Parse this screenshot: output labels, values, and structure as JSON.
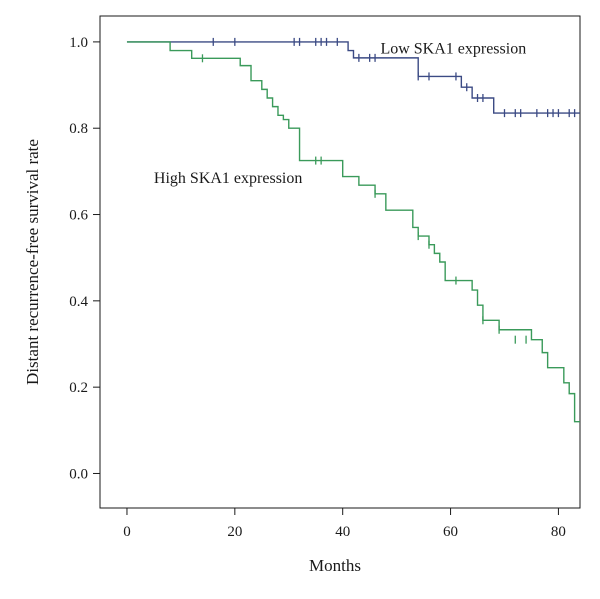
{
  "chart_data": {
    "type": "line",
    "step": true,
    "xlabel": "Months",
    "ylabel": "Distant recurrence-free survival rate",
    "xlim": [
      -5,
      84
    ],
    "ylim": [
      -0.08,
      1.06
    ],
    "xticks": [
      0,
      20,
      40,
      60,
      80
    ],
    "yticks": [
      0.0,
      0.2,
      0.4,
      0.6,
      0.8,
      1.0
    ],
    "xtick_labels": [
      "0",
      "20",
      "40",
      "60",
      "80"
    ],
    "ytick_labels": [
      "0.0",
      "0.2",
      "0.4",
      "0.6",
      "0.8",
      "1.0"
    ],
    "grid": false,
    "legend": "none",
    "series": [
      {
        "name": "Low SKA1 expression",
        "color": "#3b4a84",
        "x": [
          0,
          41,
          42,
          53,
          54,
          62,
          64,
          68,
          84
        ],
        "y": [
          1.0,
          0.98,
          0.963,
          0.963,
          0.92,
          0.895,
          0.87,
          0.835,
          0.835
        ],
        "censored": [
          {
            "x": 16,
            "y": 1.0
          },
          {
            "x": 20,
            "y": 1.0
          },
          {
            "x": 31,
            "y": 1.0
          },
          {
            "x": 32,
            "y": 1.0
          },
          {
            "x": 35,
            "y": 1.0
          },
          {
            "x": 36,
            "y": 1.0
          },
          {
            "x": 37,
            "y": 1.0
          },
          {
            "x": 39,
            "y": 1.0
          },
          {
            "x": 43,
            "y": 0.963
          },
          {
            "x": 45,
            "y": 0.963
          },
          {
            "x": 46,
            "y": 0.963
          },
          {
            "x": 54,
            "y": 0.92
          },
          {
            "x": 56,
            "y": 0.92
          },
          {
            "x": 61,
            "y": 0.92
          },
          {
            "x": 63,
            "y": 0.895
          },
          {
            "x": 65,
            "y": 0.87
          },
          {
            "x": 66,
            "y": 0.87
          },
          {
            "x": 70,
            "y": 0.835
          },
          {
            "x": 72,
            "y": 0.835
          },
          {
            "x": 73,
            "y": 0.835
          },
          {
            "x": 76,
            "y": 0.835
          },
          {
            "x": 78,
            "y": 0.835
          },
          {
            "x": 79,
            "y": 0.835
          },
          {
            "x": 80,
            "y": 0.835
          },
          {
            "x": 82,
            "y": 0.835
          },
          {
            "x": 83,
            "y": 0.835
          }
        ]
      },
      {
        "name": "High SKA1 expression",
        "color": "#3a9a5a",
        "x": [
          0,
          8,
          12,
          21,
          23,
          25,
          26,
          27,
          28,
          29,
          30,
          32,
          40,
          43,
          46,
          48,
          53,
          54,
          56,
          57,
          58,
          59,
          64,
          65,
          66,
          69,
          75,
          77,
          78,
          80,
          81,
          82,
          83,
          84
        ],
        "y": [
          1.0,
          0.98,
          0.962,
          0.945,
          0.91,
          0.89,
          0.87,
          0.85,
          0.83,
          0.82,
          0.8,
          0.725,
          0.688,
          0.668,
          0.648,
          0.61,
          0.57,
          0.55,
          0.53,
          0.51,
          0.49,
          0.447,
          0.425,
          0.39,
          0.355,
          0.333,
          0.31,
          0.28,
          0.245,
          0.245,
          0.21,
          0.185,
          0.12,
          0.12
        ],
        "censored": [
          {
            "x": 14,
            "y": 0.962
          },
          {
            "x": 35,
            "y": 0.725
          },
          {
            "x": 36,
            "y": 0.725
          },
          {
            "x": 46,
            "y": 0.648
          },
          {
            "x": 54,
            "y": 0.55
          },
          {
            "x": 56,
            "y": 0.53
          },
          {
            "x": 61,
            "y": 0.447
          },
          {
            "x": 66,
            "y": 0.355
          },
          {
            "x": 69,
            "y": 0.333
          },
          {
            "x": 72,
            "y": 0.31
          },
          {
            "x": 74,
            "y": 0.31
          }
        ]
      }
    ],
    "annotations": [
      {
        "text": "Low SKA1 expression",
        "x": 47,
        "y": 0.985
      },
      {
        "text": "High SKA1 expression",
        "x": 5,
        "y": 0.685
      }
    ]
  }
}
